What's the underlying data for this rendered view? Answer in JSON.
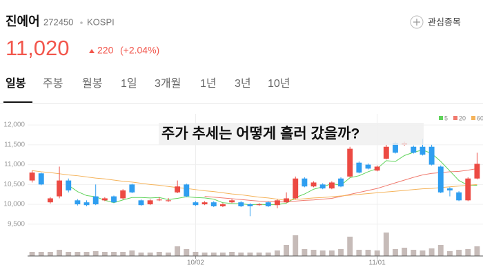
{
  "header": {
    "name": "진에어",
    "code": "272450",
    "market": "KOSPI",
    "watch_button": "관심종목",
    "price": "11,020",
    "change": "220",
    "change_pct": "(+2.04%)"
  },
  "tabs": {
    "items": [
      "일봉",
      "주봉",
      "월봉",
      "1일",
      "3개월",
      "1년",
      "3년",
      "10년"
    ],
    "selected": 0
  },
  "chart_data": {
    "type": "candlestick",
    "title": "주가 추세는 어떻게 흘러 갔을까?",
    "categories": [
      null,
      null,
      null,
      null,
      null,
      null,
      null,
      null,
      null,
      null,
      null,
      null,
      null,
      null,
      null,
      null,
      null,
      null,
      "10/02",
      null,
      null,
      null,
      null,
      null,
      null,
      null,
      null,
      null,
      null,
      null,
      null,
      null,
      null,
      null,
      null,
      null,
      null,
      null,
      "11/01",
      null,
      null,
      null,
      null,
      null,
      null,
      null,
      null,
      null,
      null,
      null
    ],
    "open": [
      10600,
      10780,
      10050,
      10200,
      10600,
      10100,
      10050,
      10200,
      10100,
      10200,
      10150,
      10500,
      10100,
      10000,
      10100,
      10080,
      10300,
      10500,
      10050,
      10000,
      10050,
      9950,
      10050,
      10050,
      10000,
      9980,
      10050,
      9980,
      10050,
      10150,
      10650,
      10450,
      10500,
      10400,
      10650,
      10700,
      11050,
      11000,
      10850,
      11150,
      11550,
      11500,
      11450,
      11450,
      11450,
      10950,
      10400,
      10300,
      10100,
      10650
    ],
    "high": [
      10850,
      10800,
      10180,
      10950,
      10650,
      10130,
      10100,
      10500,
      10180,
      10220,
      10380,
      10520,
      10120,
      10130,
      10180,
      10160,
      10600,
      10520,
      10080,
      10080,
      10080,
      10030,
      10130,
      10080,
      10030,
      10030,
      10080,
      10130,
      10300,
      10700,
      10680,
      10580,
      10530,
      10580,
      10680,
      11450,
      11080,
      11030,
      10980,
      11500,
      11580,
      11580,
      11480,
      11650,
      11500,
      10980,
      10430,
      10330,
      10680,
      11300
    ],
    "low": [
      10550,
      10480,
      10020,
      10150,
      10300,
      9970,
      9950,
      9980,
      10080,
      10030,
      10120,
      10280,
      9960,
      9980,
      10080,
      10060,
      10280,
      10180,
      9960,
      9980,
      9930,
      9930,
      10030,
      9930,
      9700,
      9960,
      9930,
      9900,
      10030,
      10130,
      10430,
      10430,
      10380,
      10380,
      10430,
      10680,
      10780,
      10880,
      10830,
      11130,
      11280,
      11480,
      11280,
      11230,
      10980,
      10280,
      10200,
      10080,
      10080,
      10630
    ],
    "close": [
      10800,
      10500,
      10150,
      10600,
      10350,
      10000,
      9980,
      10000,
      10150,
      10050,
      10350,
      10300,
      9980,
      10100,
      10120,
      10100,
      10450,
      10200,
      9980,
      10050,
      9950,
      10000,
      10100,
      9950,
      9950,
      10000,
      9950,
      10100,
      10150,
      10650,
      10450,
      10550,
      10400,
      10550,
      10450,
      11400,
      10800,
      10900,
      10950,
      11450,
      11300,
      11550,
      11300,
      11250,
      11000,
      10300,
      10350,
      10100,
      10650,
      11020
    ],
    "up_color": "#ec4a43",
    "down_color": "#2f9ef0",
    "ylim": [
      9410,
      12280
    ],
    "yticks": [
      {
        "value": 9500,
        "label": "9,500"
      },
      {
        "value": 10000,
        "label": "10,000"
      },
      {
        "value": 10500,
        "label": "10,500"
      },
      {
        "value": 11000,
        "label": "11,000"
      },
      {
        "value": 11500,
        "label": "11,500"
      },
      {
        "value": 12000,
        "label": "12,000"
      }
    ],
    "grid": true,
    "legend": "top-right",
    "series": [
      {
        "name": "5",
        "color": "#5fd35a",
        "values": [
          null,
          null,
          null,
          null,
          10480,
          10320,
          10220,
          10190,
          10100,
          10040,
          10110,
          10170,
          10170,
          10160,
          10170,
          10120,
          10150,
          10190,
          10170,
          10160,
          10130,
          10040,
          10020,
          10010,
          9990,
          10000,
          9990,
          9990,
          10030,
          10170,
          10260,
          10380,
          10440,
          10520,
          10480,
          10670,
          10720,
          10820,
          10900,
          11100,
          11080,
          11230,
          11310,
          11370,
          11280,
          11080,
          10840,
          10600,
          10480,
          10480
        ]
      },
      {
        "name": "20",
        "color": "#f07a6e",
        "values": [
          null,
          null,
          null,
          null,
          null,
          null,
          null,
          null,
          null,
          null,
          null,
          null,
          null,
          null,
          null,
          null,
          null,
          null,
          null,
          10200,
          10180,
          10160,
          10140,
          10120,
          10100,
          10080,
          10070,
          10060,
          10060,
          10080,
          10100,
          10110,
          10130,
          10150,
          10200,
          10250,
          10300,
          10350,
          10400,
          10470,
          10540,
          10610,
          10680,
          10740,
          10780,
          10800,
          10820,
          10830,
          10860,
          10900
        ]
      },
      {
        "name": "60",
        "color": "#f5b35a",
        "values": [
          10850,
          10820,
          10800,
          10770,
          10740,
          10720,
          10690,
          10660,
          10640,
          10610,
          10580,
          10560,
          10530,
          10500,
          10480,
          10450,
          10420,
          10400,
          10370,
          10340,
          10320,
          10290,
          10260,
          10240,
          10210,
          10180,
          10160,
          10130,
          10100,
          10120,
          10140,
          10160,
          10170,
          10190,
          10210,
          10230,
          10250,
          10270,
          10290,
          10310,
          10330,
          10350,
          10370,
          10390,
          10400,
          10420,
          10440,
          10460,
          10480,
          10500
        ]
      }
    ],
    "volume": {
      "color": "#c6bbb8",
      "ylim": [
        0,
        40
      ],
      "values": [
        6,
        6,
        6,
        9,
        6,
        6,
        6,
        7,
        6,
        6,
        6,
        8,
        5,
        5,
        6,
        5,
        14,
        10,
        6,
        5,
        5,
        5,
        6,
        5,
        5,
        5,
        5,
        8,
        16,
        30,
        10,
        9,
        8,
        8,
        10,
        28,
        9,
        9,
        8,
        34,
        10,
        12,
        9,
        8,
        11,
        16,
        7,
        9,
        10,
        14
      ]
    }
  }
}
